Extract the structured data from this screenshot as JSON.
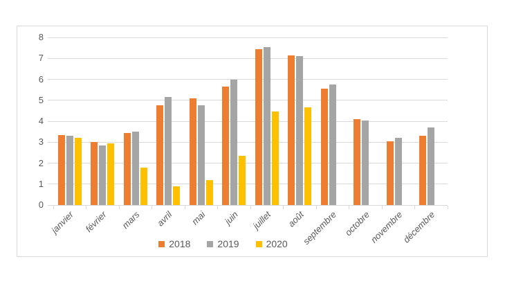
{
  "chart_data": {
    "type": "bar",
    "title": "",
    "xlabel": "",
    "ylabel": "",
    "categories": [
      "janvier",
      "février",
      "mars",
      "avril",
      "mai",
      "juin",
      "juillet",
      "août",
      "septembre",
      "octobre",
      "novembre",
      "décembre"
    ],
    "series": [
      {
        "name": "2018",
        "color": "#ED7D31",
        "values": [
          3.35,
          3.0,
          3.45,
          4.75,
          5.1,
          5.65,
          7.45,
          7.15,
          5.55,
          4.1,
          3.05,
          3.3
        ]
      },
      {
        "name": "2019",
        "color": "#A5A5A5",
        "values": [
          3.3,
          2.85,
          3.5,
          5.15,
          4.75,
          6.0,
          7.55,
          7.1,
          5.75,
          4.05,
          3.2,
          3.7
        ]
      },
      {
        "name": "2020",
        "color": "#FFC000",
        "values": [
          3.2,
          2.95,
          1.8,
          0.9,
          1.2,
          2.35,
          4.45,
          4.65,
          null,
          null,
          null,
          null
        ]
      }
    ],
    "ylim": [
      0,
      8
    ],
    "y_ticks": [
      0,
      1,
      2,
      3,
      4,
      5,
      6,
      7,
      8
    ],
    "grid": true,
    "legend_position": "bottom",
    "styles": {
      "text_color": "#595959",
      "grid_color": "#D9D9D9",
      "border_color": "#D9D9D9",
      "background": "#FFFFFF"
    }
  }
}
